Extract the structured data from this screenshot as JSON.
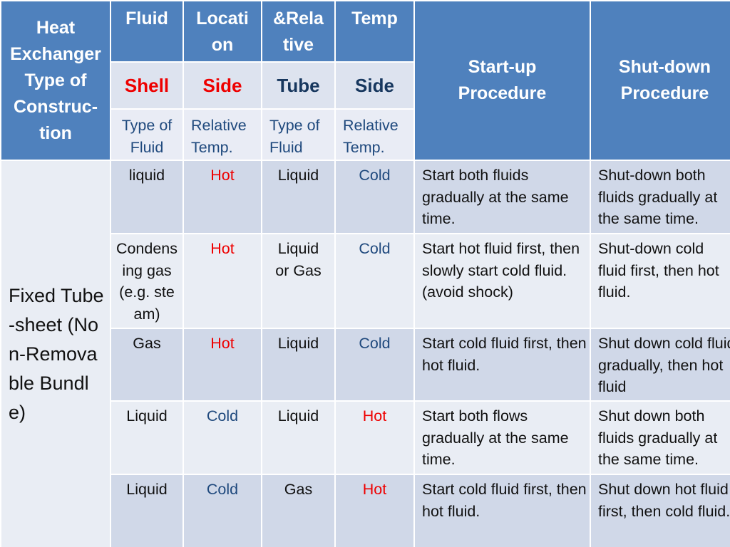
{
  "header": {
    "col1": "Heat Exchanger Type of Construc-tion",
    "col2": "Fluid",
    "col3": "Locati on",
    "col4": "&Rela tive",
    "col5": "Temp",
    "startup": "Start-up Procedure",
    "shutdown": "Shut-down Procedure"
  },
  "subheader": {
    "shell": "Shell",
    "side1": "Side",
    "tube": "Tube",
    "side2": "Side",
    "type_of_fluid_1": "Type of Fluid",
    "relative_temp_1": "Relative Temp.",
    "type_of_fluid_2": "Type of Fluid",
    "relative_temp_2": "Relative Temp."
  },
  "construction": "Fixed Tube-sheet (Non-Removable Bundle)",
  "colors": {
    "header_blue": "#4f81bd",
    "row_dark": "#d0d8e8",
    "row_light": "#e9edf4",
    "hot": "#ee0000",
    "cold": "#1f497d"
  },
  "rows": [
    {
      "shell_fluid": "liquid",
      "shell_temp": "Hot",
      "tube_fluid": "Liquid",
      "tube_temp": "Cold",
      "startup": "Start both fluids gradually at the same time.",
      "shutdown": "Shut-down both fluids gradually at the same time."
    },
    {
      "shell_fluid": "Condensing gas (e.g. steam)",
      "shell_temp": "Hot",
      "tube_fluid": "Liquid or Gas",
      "tube_temp": "Cold",
      "startup": "Start hot fluid first, then slowly start cold fluid. (avoid shock)",
      "shutdown": "Shut-down cold fluid first, then hot fluid."
    },
    {
      "shell_fluid": "Gas",
      "shell_temp": "Hot",
      "tube_fluid": "Liquid",
      "tube_temp": "Cold",
      "startup": "Start cold fluid first, then hot fluid.",
      "shutdown": "Shut down cold fluid gradually, then hot fluid"
    },
    {
      "shell_fluid": "Liquid",
      "shell_temp": "Cold",
      "tube_fluid": "Liquid",
      "tube_temp": "Hot",
      "startup": "Start both flows gradually at the same time.",
      "shutdown": "Shut down both fluids gradually at the same time."
    },
    {
      "shell_fluid": "Liquid",
      "shell_temp": "Cold",
      "tube_fluid": "Gas",
      "tube_temp": "Hot",
      "startup": "Start cold fluid first, then hot fluid.",
      "shutdown": "Shut down hot fluid first, then cold fluid."
    }
  ]
}
